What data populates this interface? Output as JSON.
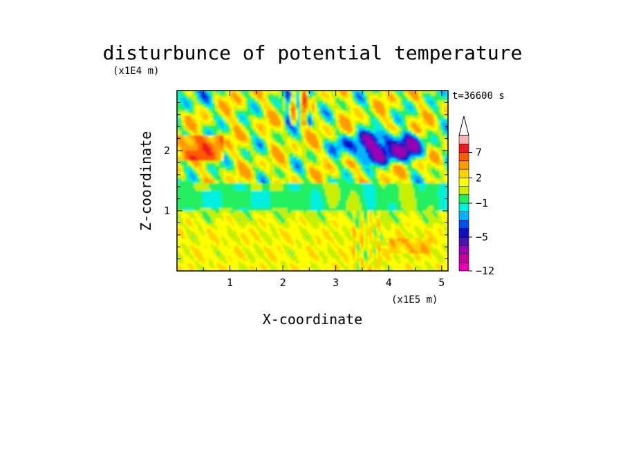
{
  "chart_data": {
    "type": "heatmap",
    "title": "disturbunce of potential temperature",
    "xlabel": "X-coordinate",
    "ylabel": "Z-coordinate",
    "x_unit": "(x1E5 m)",
    "y_unit": "(x1E4 m)",
    "time_label": "t=36600 s",
    "xlim": [
      0,
      5.12
    ],
    "ylim": [
      0,
      3.0
    ],
    "x_ticks": [
      "1",
      "2",
      "3",
      "4",
      "5"
    ],
    "y_ticks": [
      "1",
      "2"
    ],
    "colorbar": {
      "levels": [
        -12,
        -10,
        -8,
        -6,
        -5,
        -4,
        -3,
        -2,
        -1,
        0,
        1,
        2,
        3,
        5,
        7,
        9,
        11
      ],
      "colors": [
        "#e800b4",
        "#c8009c",
        "#9a00b4",
        "#4a14b4",
        "#0c10c8",
        "#0050f0",
        "#00b4ff",
        "#00f0e0",
        "#20f060",
        "#c8f000",
        "#ffff00",
        "#ffd200",
        "#ff9a00",
        "#ff5a00",
        "#ee1a1a",
        "#ffb0b0"
      ],
      "tick_labels": [
        "7",
        "2",
        "−1",
        "−5",
        "−12"
      ],
      "extend": "max"
    }
  }
}
